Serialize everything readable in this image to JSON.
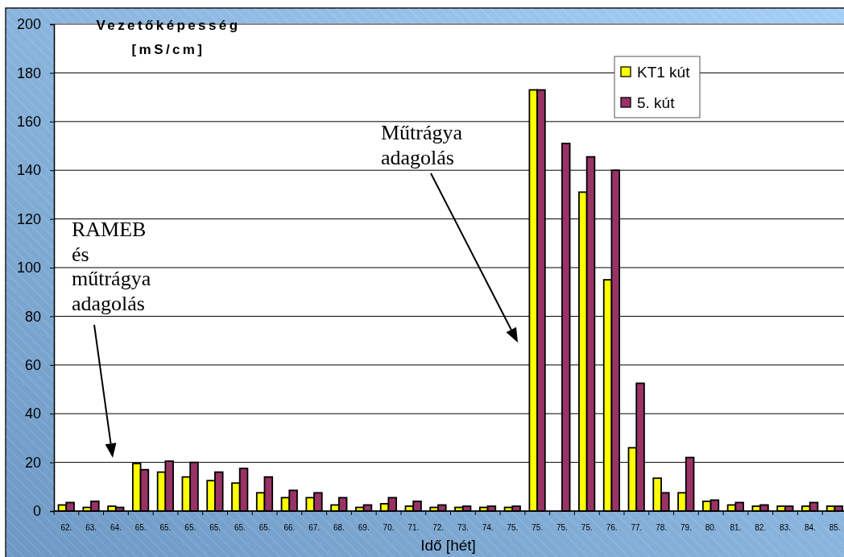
{
  "chart_data": {
    "type": "bar",
    "ylabel": "Vezetőképesség [mS/cm]",
    "xlabel": "Idő [hét]",
    "categories": [
      "62.",
      "63.",
      "64.",
      "65.",
      "65.",
      "65.",
      "65.",
      "65.",
      "65.",
      "66.",
      "67.",
      "68.",
      "69.",
      "70.",
      "71.",
      "72.",
      "73.",
      "74.",
      "75.",
      "75.",
      "75.",
      "75.",
      "76.",
      "77.",
      "78.",
      "79.",
      "80.",
      "81.",
      "82.",
      "83.",
      "84.",
      "85."
    ],
    "series": [
      {
        "name": "KT1 kút",
        "color": "#ffff00",
        "values": [
          2.5,
          1.5,
          2,
          19.5,
          16,
          14,
          12.5,
          11.5,
          7.5,
          5.5,
          5.5,
          2.5,
          1.5,
          3,
          2,
          1.5,
          1.5,
          1.5,
          1.5,
          173,
          null,
          131,
          95,
          26,
          13.5,
          7.5,
          4,
          2.5,
          2,
          2,
          2,
          2
        ]
      },
      {
        "name": "5. kút",
        "color": "#993366",
        "values": [
          3.5,
          4,
          1.5,
          17,
          20.5,
          20,
          16,
          17.5,
          14,
          8.5,
          7.5,
          5.5,
          2.5,
          5.5,
          4,
          2.5,
          2,
          2,
          2,
          173,
          151,
          145.5,
          140,
          52.5,
          7.5,
          22,
          4.5,
          3.5,
          2.5,
          2,
          3.5,
          2
        ]
      }
    ],
    "ylim": [
      0,
      200
    ],
    "yticks": [
      0,
      20,
      40,
      60,
      80,
      100,
      120,
      140,
      160,
      180,
      200
    ],
    "grid": "y",
    "legend": "top right",
    "annotations": [
      "RAMEB és műtrágya adagolás",
      "Műtrágya adagolás"
    ]
  }
}
